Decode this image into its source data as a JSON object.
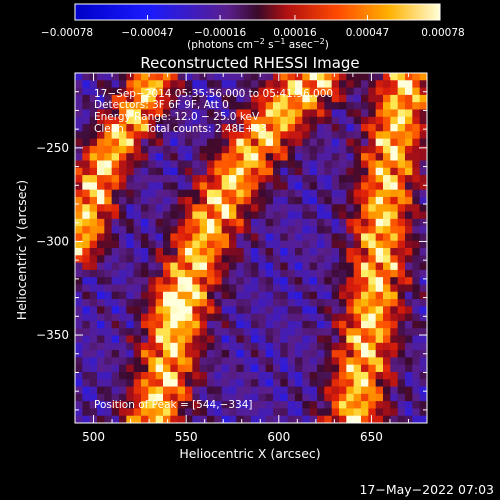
{
  "chart_data": {
    "type": "heatmap",
    "title": "Reconstructed RHESSI Image",
    "xlabel": "Heliocentric X (arcsec)",
    "ylabel": "Heliocentric Y (arcsec)",
    "xlim": [
      490,
      680
    ],
    "ylim": [
      -397,
      -210
    ],
    "x_ticks": [
      500,
      550,
      600,
      650
    ],
    "x_tick_labels": [
      "500",
      "550",
      "600",
      "650"
    ],
    "y_ticks": [
      -250,
      -300,
      -350
    ],
    "y_tick_labels": [
      "−250",
      "−300",
      "−350"
    ],
    "colorbar": {
      "range": [
        -0.00078,
        0.00078
      ],
      "ticks": [
        -0.00078,
        -0.00047,
        -0.00016,
        0.00016,
        0.00047,
        0.00078
      ],
      "tick_labels": [
        "−0.00078",
        "−0.00047",
        "−0.00016",
        "0.00016",
        "0.00047",
        "0.00078"
      ],
      "unit_prefix": "(photons cm",
      "unit_exp1": "−2",
      "unit_mid1": " s",
      "unit_exp2": "−1",
      "unit_mid2": " asec",
      "unit_exp3": "−2",
      "unit_suffix": ")"
    },
    "annotations": {
      "time_range": "17−Sep−2014 05:35:56.000 to 05:41:56.000",
      "detectors": "Detectors: 3F 6F 9F, Att 0",
      "energy": "Energy Range: 12.0 − 25.0 keV",
      "clean": "Clean",
      "total_counts": "Total counts: 2.48E+03",
      "peak": "Position of Peak = [544,−334]"
    },
    "ridges": [
      {
        "points": [
          [
            530,
            -400
          ],
          [
            538,
            -375
          ],
          [
            544,
            -345
          ],
          [
            552,
            -318
          ],
          [
            562,
            -292
          ],
          [
            574,
            -270
          ],
          [
            588,
            -248
          ],
          [
            604,
            -228
          ],
          [
            622,
            -210
          ]
        ]
      },
      {
        "points": [
          [
            640,
            -400
          ],
          [
            644,
            -370
          ],
          [
            650,
            -340
          ],
          [
            654,
            -310
          ],
          [
            656,
            -285
          ],
          [
            660,
            -258
          ],
          [
            664,
            -236
          ],
          [
            670,
            -212
          ]
        ]
      },
      {
        "points": [
          [
            492,
            -300
          ],
          [
            498,
            -282
          ],
          [
            504,
            -262
          ],
          [
            512,
            -248
          ],
          [
            522,
            -232
          ],
          [
            532,
            -215
          ]
        ]
      }
    ],
    "peak": [
      544,
      -334
    ],
    "footer_timestamp": "17−May−2022 07:03"
  }
}
